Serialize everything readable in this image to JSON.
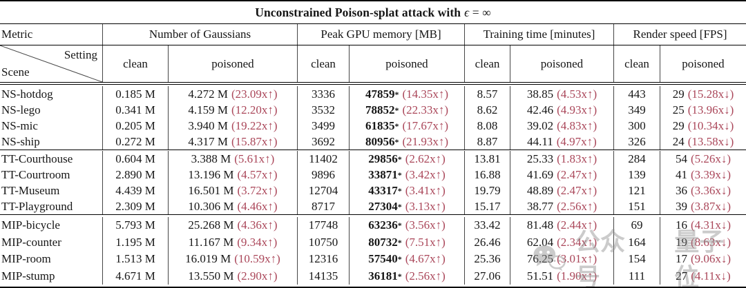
{
  "title": {
    "main": "Unconstrained Poison-splat attack with",
    "eps": "ϵ",
    "rest": " = ∞"
  },
  "colors": {
    "accent_red": "#AA4659",
    "rule_black": "#000000",
    "text": "#161616",
    "watermark_gray": "#8d8d8d"
  },
  "table": {
    "metric_label": "Metric",
    "corner_top": "Setting",
    "corner_bottom": "Scene",
    "metrics": [
      {
        "label": "Number of Gaussians",
        "sub": [
          "clean",
          "poisoned"
        ]
      },
      {
        "label": "Peak GPU memory [MB]",
        "sub": [
          "clean",
          "poisoned"
        ]
      },
      {
        "label": "Training time [minutes]",
        "sub": [
          "clean",
          "poisoned"
        ]
      },
      {
        "label": "Render speed [FPS]",
        "sub": [
          "clean",
          "poisoned"
        ]
      }
    ],
    "groups": [
      {
        "rows": [
          {
            "scene": "NS-hotdog",
            "gaussians": {
              "clean": "0.185 M",
              "poisoned": "4.272 M",
              "factor": "(23.09x↑)"
            },
            "gpu": {
              "clean": "3336",
              "poisoned": "47859",
              "star": "*",
              "factor": "(14.35x↑)"
            },
            "time": {
              "clean": "8.57",
              "poisoned": "38.85",
              "factor": "(4.53x↑)"
            },
            "fps": {
              "clean": "443",
              "poisoned": "29",
              "factor": "(15.28x↓)"
            }
          },
          {
            "scene": "NS-lego",
            "gaussians": {
              "clean": "0.341 M",
              "poisoned": "4.159 M",
              "factor": "(12.20x↑)"
            },
            "gpu": {
              "clean": "3532",
              "poisoned": "78852",
              "star": "*",
              "factor": "(22.33x↑)"
            },
            "time": {
              "clean": "8.62",
              "poisoned": "42.46",
              "factor": "(4.93x↑)"
            },
            "fps": {
              "clean": "349",
              "poisoned": "25",
              "factor": "(13.96x↓)"
            }
          },
          {
            "scene": "NS-mic",
            "gaussians": {
              "clean": "0.205 M",
              "poisoned": "3.940 M",
              "factor": "(19.22x↑)"
            },
            "gpu": {
              "clean": "3499",
              "poisoned": "61835",
              "star": "*",
              "factor": "(17.67x↑)"
            },
            "time": {
              "clean": "8.08",
              "poisoned": "39.02",
              "factor": "(4.83x↑)"
            },
            "fps": {
              "clean": "300",
              "poisoned": "29",
              "factor": "(10.34x↓)"
            }
          },
          {
            "scene": "NS-ship",
            "gaussians": {
              "clean": "0.272 M",
              "poisoned": "4.317 M",
              "factor": "(15.87x↑)"
            },
            "gpu": {
              "clean": "3692",
              "poisoned": "80956",
              "star": "*",
              "factor": "(21.93x↑)"
            },
            "time": {
              "clean": "8.87",
              "poisoned": "44.11",
              "factor": "(4.97x↑)"
            },
            "fps": {
              "clean": "326",
              "poisoned": "24",
              "factor": "(13.58x↓)"
            }
          }
        ]
      },
      {
        "rows": [
          {
            "scene": "TT-Courthouse",
            "gaussians": {
              "clean": "0.604 M",
              "poisoned": "3.388 M",
              "factor": "(5.61x↑)"
            },
            "gpu": {
              "clean": "11402",
              "poisoned": "29856",
              "star": "*",
              "factor": "(2.62x↑)"
            },
            "time": {
              "clean": "13.81",
              "poisoned": "25.33",
              "factor": "(1.83x↑)"
            },
            "fps": {
              "clean": "284",
              "poisoned": "54",
              "factor": "(5.26x↓)"
            }
          },
          {
            "scene": "TT-Courtroom",
            "gaussians": {
              "clean": "2.890 M",
              "poisoned": "13.196 M",
              "factor": "(4.57x↑)"
            },
            "gpu": {
              "clean": "9896",
              "poisoned": "33871",
              "star": "*",
              "factor": "(3.42x↑)"
            },
            "time": {
              "clean": "16.88",
              "poisoned": "41.69",
              "factor": "(2.47x↑)"
            },
            "fps": {
              "clean": "139",
              "poisoned": "41",
              "factor": "(3.39x↓)"
            }
          },
          {
            "scene": "TT-Museum",
            "gaussians": {
              "clean": "4.439 M",
              "poisoned": "16.501 M",
              "factor": "(3.72x↑)"
            },
            "gpu": {
              "clean": "12704",
              "poisoned": "43317",
              "star": "*",
              "factor": "(3.41x↑)"
            },
            "time": {
              "clean": "19.79",
              "poisoned": "48.89",
              "factor": "(2.47x↑)"
            },
            "fps": {
              "clean": "121",
              "poisoned": "36",
              "factor": "(3.36x↓)"
            }
          },
          {
            "scene": "TT-Playground",
            "gaussians": {
              "clean": "2.309 M",
              "poisoned": "10.306 M",
              "factor": "(4.46x↑)"
            },
            "gpu": {
              "clean": "8717",
              "poisoned": "27304",
              "star": "*",
              "factor": "(3.13x↑)"
            },
            "time": {
              "clean": "15.17",
              "poisoned": "38.77",
              "factor": "(2.56x↑)"
            },
            "fps": {
              "clean": "151",
              "poisoned": "39",
              "factor": "(3.87x↓)"
            }
          }
        ]
      },
      {
        "rows": [
          {
            "scene": "MIP-bicycle",
            "gaussians": {
              "clean": "5.793 M",
              "poisoned": "25.268 M",
              "factor": "(4.36x↑)"
            },
            "gpu": {
              "clean": "17748",
              "poisoned": "63236",
              "star": "*",
              "factor": "(3.56x↑)"
            },
            "time": {
              "clean": "33.42",
              "poisoned": "81.48",
              "factor": "(2.44x↑)"
            },
            "fps": {
              "clean": "69",
              "poisoned": "16",
              "factor": "(4.31x↓)"
            }
          },
          {
            "scene": "MIP-counter",
            "gaussians": {
              "clean": "1.195 M",
              "poisoned": "11.167 M",
              "factor": "(9.34x↑)"
            },
            "gpu": {
              "clean": "10750",
              "poisoned": "80732",
              "star": "*",
              "factor": "(7.51x↑)"
            },
            "time": {
              "clean": "26.46",
              "poisoned": "62.04",
              "factor": "(2.34x↑)"
            },
            "fps": {
              "clean": "164",
              "poisoned": "19",
              "factor": "(8.63x↓)"
            }
          },
          {
            "scene": "MIP-room",
            "gaussians": {
              "clean": "1.513 M",
              "poisoned": "16.019 M",
              "factor": "(10.59x↑)"
            },
            "gpu": {
              "clean": "12316",
              "poisoned": "57540",
              "star": "*",
              "factor": "(4.67x↑)"
            },
            "time": {
              "clean": "25.36",
              "poisoned": "76.25",
              "factor": "(3.01x↑)"
            },
            "fps": {
              "clean": "154",
              "poisoned": "17",
              "factor": "(9.06x↓)"
            }
          },
          {
            "scene": "MIP-stump",
            "gaussians": {
              "clean": "4.671 M",
              "poisoned": "13.550 M",
              "factor": "(2.90x↑)"
            },
            "gpu": {
              "clean": "14135",
              "poisoned": "36181",
              "star": "*",
              "factor": "(2.56x↑)"
            },
            "time": {
              "clean": "27.06",
              "poisoned": "51.51",
              "factor": "(1.90x↑)"
            },
            "fps": {
              "clean": "111",
              "poisoned": "27",
              "factor": "(4.11x↓)"
            }
          }
        ]
      }
    ]
  },
  "watermark": {
    "icon": "wechat-icon",
    "text_left": "公众号",
    "text_right": "量子位"
  }
}
